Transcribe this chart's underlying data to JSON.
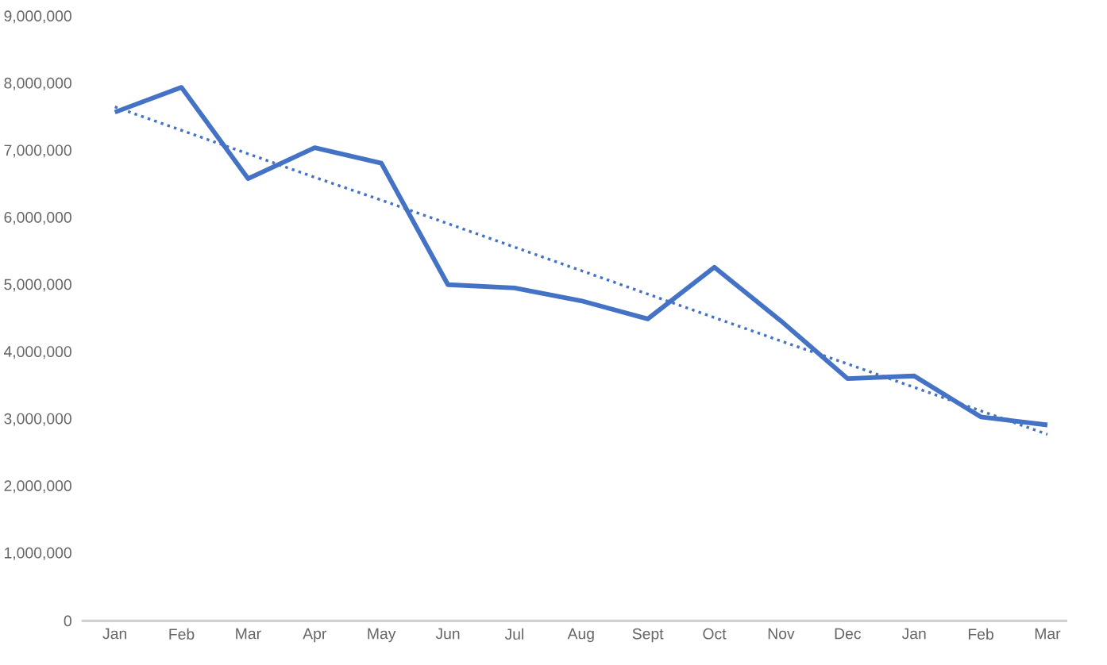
{
  "chart_data": {
    "type": "line",
    "categories": [
      "Jan",
      "Feb",
      "Mar",
      "Apr",
      "May",
      "Jun",
      "Jul",
      "Aug",
      "Sept",
      "Oct",
      "Nov",
      "Dec",
      "Jan",
      "Feb",
      "Mar"
    ],
    "series": [
      {
        "color": "#4472c4",
        "line_style": "solid",
        "values": [
          7580000,
          7950000,
          6590000,
          7050000,
          6820000,
          5010000,
          4960000,
          4770000,
          4500000,
          5270000,
          4470000,
          3610000,
          3650000,
          3040000,
          2920000
        ]
      },
      {
        "color": "#4472c4",
        "line_style": "dotted",
        "values": [
          7660000,
          7310000,
          6960000,
          6610000,
          6270000,
          5920000,
          5570000,
          5220000,
          4870000,
          4520000,
          4170000,
          3830000,
          3480000,
          3130000,
          2780000
        ]
      }
    ],
    "ylim": [
      0,
      9000000
    ],
    "yticks": [
      {
        "value": 0,
        "label": "0"
      },
      {
        "value": 1000000,
        "label": "1,000,000"
      },
      {
        "value": 2000000,
        "label": "2,000,000"
      },
      {
        "value": 3000000,
        "label": "3,000,000"
      },
      {
        "value": 4000000,
        "label": "4,000,000"
      },
      {
        "value": 5000000,
        "label": "5,000,000"
      },
      {
        "value": 6000000,
        "label": "6,000,000"
      },
      {
        "value": 7000000,
        "label": "7,000,000"
      },
      {
        "value": 8000000,
        "label": "8,000,000"
      },
      {
        "value": 9000000,
        "label": "9,000,000"
      }
    ],
    "grid": false,
    "marker": "none"
  }
}
